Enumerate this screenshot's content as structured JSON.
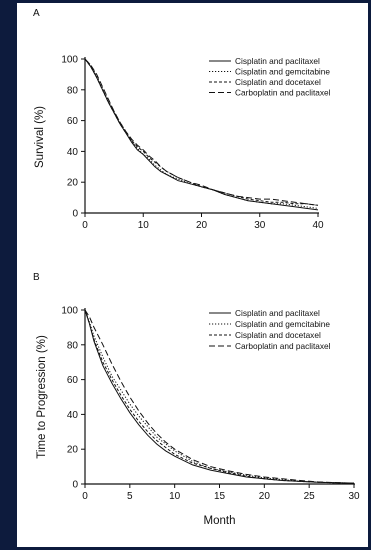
{
  "chart_data": [
    {
      "type": "line",
      "panel_label": "A",
      "title": "",
      "xlabel": "",
      "ylabel": "Survival (%)",
      "xlim": [
        0,
        40
      ],
      "ylim": [
        0,
        100
      ],
      "xticks": [
        0,
        10,
        20,
        30,
        40
      ],
      "yticks": [
        0,
        20,
        40,
        60,
        80,
        100
      ],
      "legend_position": "top-right",
      "grid": false,
      "series": [
        {
          "name": "Cisplatin and paclitaxel",
          "dash": "solid",
          "x": [
            0,
            1,
            2,
            3,
            4,
            5,
            6,
            7,
            8,
            9,
            10,
            11,
            12,
            13,
            14,
            16,
            18,
            20,
            22,
            24,
            26,
            28,
            30,
            32,
            34,
            36,
            38,
            40
          ],
          "y": [
            100,
            95,
            88,
            80,
            72,
            65,
            58,
            52,
            46,
            41,
            38,
            34,
            30,
            27,
            25,
            21,
            19,
            17,
            15,
            12,
            10,
            8,
            7,
            6,
            5,
            4,
            3,
            2
          ]
        },
        {
          "name": "Cisplatin and gemcitabine",
          "dash": "dotted",
          "x": [
            0,
            1,
            2,
            3,
            4,
            5,
            6,
            7,
            8,
            9,
            10,
            11,
            12,
            13,
            14,
            16,
            18,
            20,
            22,
            24,
            26,
            28,
            30,
            32,
            34,
            36,
            38,
            40
          ],
          "y": [
            100,
            96,
            89,
            81,
            73,
            66,
            59,
            53,
            47,
            42,
            38,
            35,
            31,
            28,
            25,
            22,
            19,
            17,
            15,
            12,
            10,
            8,
            7,
            6,
            6,
            5,
            4,
            3
          ]
        },
        {
          "name": "Cisplatin and docetaxel",
          "dash": "short-dash",
          "x": [
            0,
            1,
            2,
            3,
            4,
            5,
            6,
            7,
            8,
            9,
            10,
            11,
            12,
            13,
            14,
            16,
            18,
            20,
            22,
            24,
            26,
            28,
            30,
            32,
            34,
            36,
            38,
            40
          ],
          "y": [
            100,
            95,
            88,
            80,
            72,
            65,
            58,
            52,
            47,
            43,
            40,
            36,
            33,
            30,
            27,
            23,
            20,
            17,
            15,
            13,
            11,
            9,
            8,
            7,
            7,
            6,
            6,
            5
          ]
        },
        {
          "name": "Carboplatin and paclitaxel",
          "dash": "long-dash",
          "x": [
            0,
            1,
            2,
            3,
            4,
            5,
            6,
            7,
            8,
            9,
            10,
            11,
            12,
            13,
            14,
            16,
            18,
            20,
            22,
            24,
            26,
            28,
            30,
            32,
            34,
            36,
            38,
            40
          ],
          "y": [
            100,
            96,
            90,
            82,
            74,
            66,
            59,
            53,
            48,
            44,
            41,
            37,
            34,
            30,
            27,
            23,
            20,
            18,
            15,
            13,
            11,
            10,
            9,
            9,
            8,
            7,
            6,
            5
          ]
        }
      ]
    },
    {
      "type": "line",
      "panel_label": "B",
      "title": "",
      "xlabel": "Month",
      "ylabel": "Time to Progression (%)",
      "xlim": [
        0,
        30
      ],
      "ylim": [
        0,
        100
      ],
      "xticks": [
        0,
        5,
        10,
        15,
        20,
        25,
        30
      ],
      "yticks": [
        0,
        20,
        40,
        60,
        80,
        100
      ],
      "legend_position": "top-right",
      "grid": false,
      "series": [
        {
          "name": "Cisplatin and paclitaxel",
          "dash": "solid",
          "x": [
            0,
            0.5,
            1,
            2,
            3,
            4,
            5,
            6,
            7,
            8,
            9,
            10,
            12,
            14,
            16,
            18,
            20,
            22,
            24,
            26,
            28,
            30
          ],
          "y": [
            100,
            92,
            82,
            68,
            58,
            49,
            41,
            34,
            28,
            23,
            19,
            16,
            11,
            8,
            6,
            4,
            3,
            2,
            1.5,
            1,
            0.7,
            0.5
          ]
        },
        {
          "name": "Cisplatin and gemcitabine",
          "dash": "dotted",
          "x": [
            0,
            0.5,
            1,
            2,
            3,
            4,
            5,
            6,
            7,
            8,
            9,
            10,
            12,
            14,
            16,
            18,
            20,
            22,
            24,
            26,
            28,
            30
          ],
          "y": [
            100,
            93,
            85,
            73,
            62,
            54,
            46,
            39,
            33,
            27,
            23,
            19,
            13,
            9,
            7,
            5,
            3.5,
            2.5,
            1.5,
            1,
            0.7,
            0.5
          ]
        },
        {
          "name": "Cisplatin and docetaxel",
          "dash": "short-dash",
          "x": [
            0,
            0.5,
            1,
            2,
            3,
            4,
            5,
            6,
            7,
            8,
            9,
            10,
            12,
            14,
            16,
            18,
            20,
            22,
            24,
            26,
            28,
            30
          ],
          "y": [
            100,
            92,
            83,
            70,
            60,
            51,
            43,
            36,
            30,
            25,
            21,
            17,
            12,
            9,
            6.5,
            4.5,
            3,
            2,
            1.5,
            1,
            0.7,
            0.5
          ]
        },
        {
          "name": "Carboplatin and paclitaxel",
          "dash": "long-dash",
          "x": [
            0,
            0.5,
            1,
            2,
            3,
            4,
            5,
            6,
            7,
            8,
            9,
            10,
            12,
            14,
            16,
            18,
            20,
            22,
            24,
            26,
            28,
            30
          ],
          "y": [
            100,
            96,
            90,
            80,
            69,
            59,
            50,
            42,
            35,
            29,
            24,
            20,
            14,
            10,
            7.5,
            5.5,
            4,
            3,
            2,
            1.2,
            0.8,
            0.5
          ]
        }
      ]
    }
  ]
}
